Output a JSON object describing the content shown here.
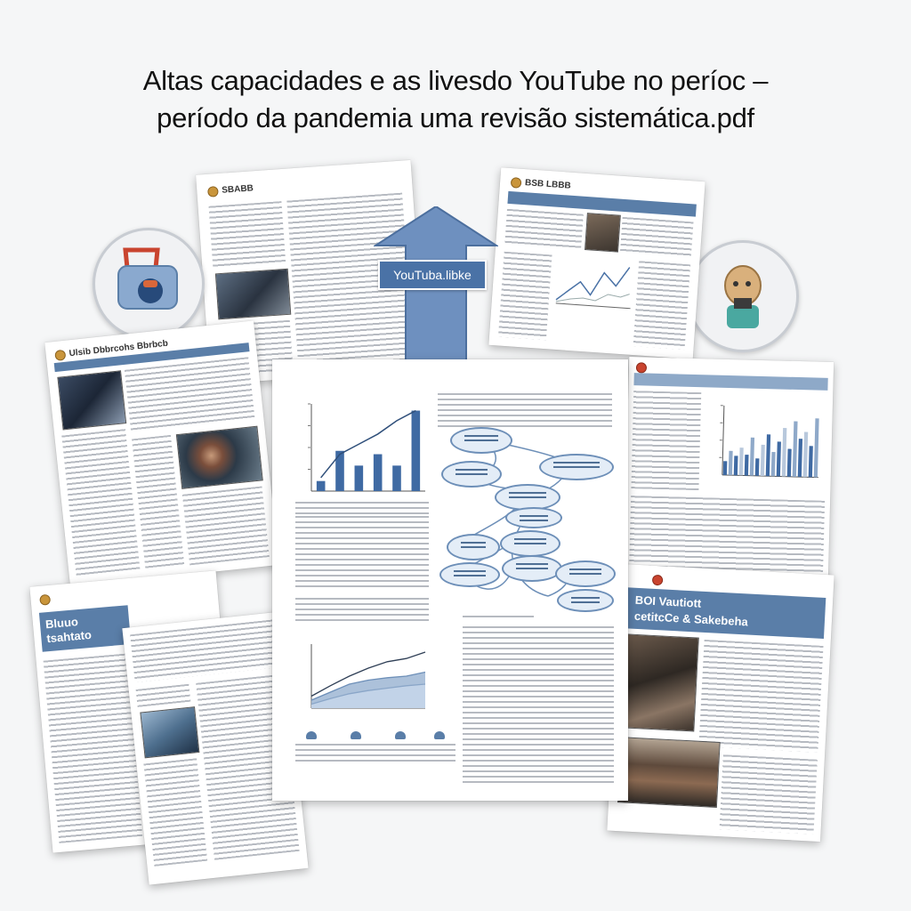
{
  "document": {
    "title_line1": "Altas capacidades e as livesdo YouTube no períoc –",
    "title_line2": "período da pandemia uma revisão sistemática.pdf"
  },
  "arrow_label": "YouTuba.libke",
  "pages": {
    "top_left_header": "SBABB",
    "top_right_header": "BSB LBBB",
    "left_mid_header": "Ulsib Dbbrcohs Bbrbcb",
    "bottom_left_band": "Bluuo tsahtato",
    "right_bottom_band_line1": "BOI Vautiott",
    "right_bottom_band_line2": "cetitcCe & Sakebeha"
  },
  "colors": {
    "accent_blue": "#5a7ea8",
    "arrow_blue": "#6e90bf",
    "logo_gold": "#c9953b",
    "logo_red": "#c9442f"
  },
  "icons": [
    "handbag-icon",
    "figure-icon",
    "concept-map",
    "bar-chart",
    "area-chart"
  ],
  "chart_data": [
    {
      "type": "bar",
      "categories": [
        "",
        "",
        "",
        "",
        "",
        ""
      ],
      "values": [
        15,
        60,
        38,
        55,
        38,
        120
      ],
      "series_line": [
        20,
        55,
        70,
        85,
        105,
        120
      ],
      "title": "",
      "xlabel": "",
      "ylabel": "",
      "ylim": [
        0,
        130
      ]
    },
    {
      "type": "bar",
      "categories": [
        "",
        "",
        "",
        "",
        "",
        "",
        "",
        "",
        "",
        "",
        "",
        "",
        "",
        "",
        "",
        "",
        "",
        ""
      ],
      "values": [
        20,
        35,
        28,
        40,
        30,
        55,
        25,
        45,
        60,
        35,
        50,
        70,
        40,
        80,
        55,
        65,
        45,
        85
      ],
      "title": "",
      "xlabel": "",
      "ylabel": "",
      "ylim": [
        0,
        100
      ]
    },
    {
      "type": "area",
      "x": [
        0,
        1,
        2,
        3,
        4,
        5,
        6
      ],
      "series": [
        {
          "name": "",
          "values": [
            10,
            20,
            30,
            35,
            38,
            40,
            45
          ]
        },
        {
          "name": "",
          "values": [
            5,
            12,
            18,
            22,
            25,
            28,
            30
          ]
        },
        {
          "name": "",
          "values": [
            15,
            28,
            40,
            50,
            58,
            62,
            70
          ]
        }
      ],
      "title": "",
      "xlabel": "",
      "ylabel": "",
      "ylim": [
        0,
        80
      ]
    }
  ]
}
